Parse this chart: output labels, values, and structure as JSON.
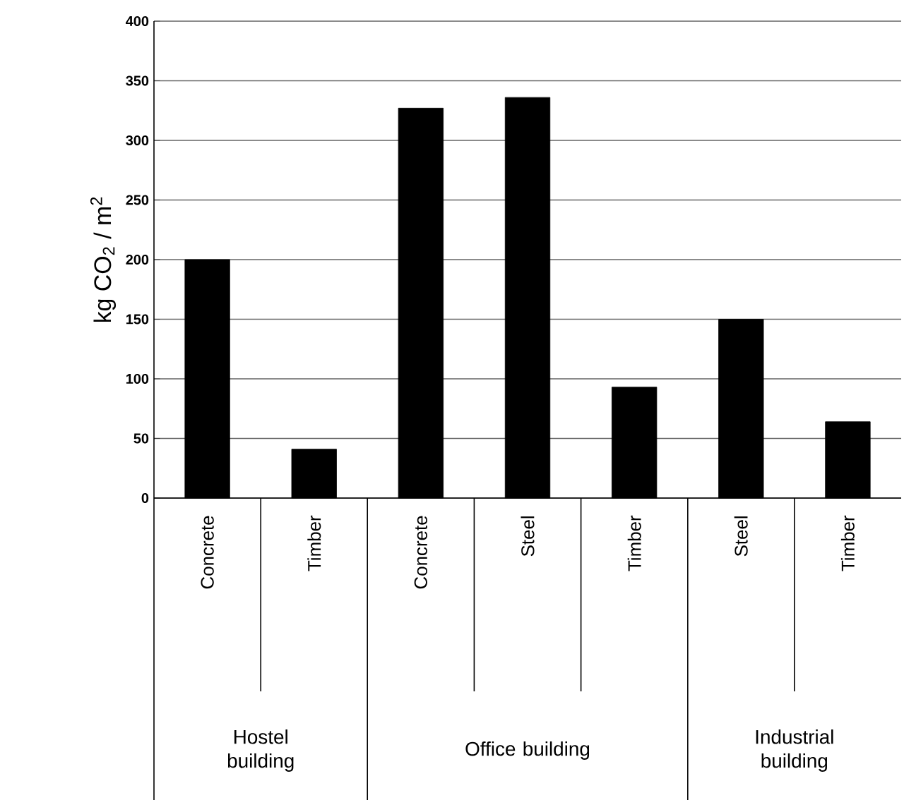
{
  "chart_data": {
    "type": "bar",
    "ylabel": "kg CO$_{2}$ / m$^{2}$",
    "categories": [
      "Concrete",
      "Timber",
      "Concrete",
      "Steel",
      "Timber",
      "Steel",
      "Timber"
    ],
    "values": [
      200,
      41,
      327,
      336,
      93,
      150,
      64
    ],
    "color": "#000000",
    "ylim": [
      0,
      400
    ],
    "yticks": [
      0,
      50,
      100,
      150,
      200,
      250,
      300,
      350,
      400
    ],
    "grid": "y",
    "annotations": [
      "Hostel building",
      "Office building",
      "Industrial building"
    ]
  }
}
